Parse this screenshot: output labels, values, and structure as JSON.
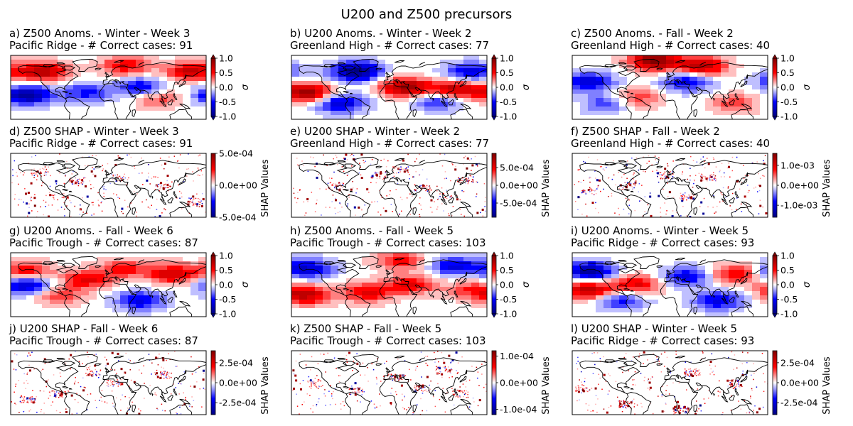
{
  "figure": {
    "title": "U200 and Z500 precursors"
  },
  "colors": {
    "negative_max": "#00007f",
    "negative": "#0000ff",
    "neutral": "#ffffff",
    "positive": "#ff0000",
    "positive_max": "#7f0000",
    "coast": "#000000"
  },
  "chart_data": [
    {
      "type": "heatmap",
      "panel": "a",
      "kind": "anom",
      "title_line1": "a) Z500 Anoms. - Winter - Week 3",
      "title_line2": "Pacific Ridge - # Correct cases: 91",
      "colorbar_label": "σ",
      "colorbar_ticks": [
        "1.0",
        "0.5",
        "0.0",
        "-0.5",
        "-1.0"
      ],
      "vmin": -1.0,
      "vmax": 1.0,
      "field": {
        "lat_range": [
          -30,
          90
        ],
        "lon_range": [
          -180,
          180
        ],
        "pattern": [
          {
            "lon": -120,
            "lat": 60,
            "value": 0.8
          },
          {
            "lon": 150,
            "lat": 60,
            "value": 0.7
          },
          {
            "lon": -150,
            "lat": 15,
            "value": -0.9
          },
          {
            "lon": 60,
            "lat": 30,
            "value": -0.6
          },
          {
            "lon": 90,
            "lat": 10,
            "value": 0.4
          },
          {
            "lon": -40,
            "lat": 20,
            "value": -0.5
          },
          {
            "lon": 30,
            "lat": 70,
            "value": 0.6
          }
        ]
      }
    },
    {
      "type": "heatmap",
      "panel": "b",
      "kind": "anom",
      "title_line1": "b) U200 Anoms. - Winter - Week 2",
      "title_line2": "Greenland High - # Correct cases: 77",
      "colorbar_label": "σ",
      "colorbar_ticks": [
        "1.0",
        "0.5",
        "0.0",
        "-0.5",
        "-1.0"
      ],
      "vmin": -1.0,
      "vmax": 1.0,
      "field": {
        "lat_range": [
          -30,
          90
        ],
        "lon_range": [
          -180,
          180
        ],
        "pattern": [
          {
            "lon": -60,
            "lat": 60,
            "value": -1.0
          },
          {
            "lon": -150,
            "lat": 20,
            "value": 0.9
          },
          {
            "lon": 30,
            "lat": 30,
            "value": 0.9
          },
          {
            "lon": 120,
            "lat": 25,
            "value": 0.8
          },
          {
            "lon": 90,
            "lat": 5,
            "value": -0.5
          },
          {
            "lon": -90,
            "lat": 0,
            "value": -0.7
          },
          {
            "lon": 150,
            "lat": 60,
            "value": -0.6
          }
        ]
      }
    },
    {
      "type": "heatmap",
      "panel": "c",
      "kind": "anom",
      "title_line1": "c) Z500 Anoms. - Fall - Week 2",
      "title_line2": "Greenland High - # Correct cases: 40",
      "colorbar_label": "σ",
      "colorbar_ticks": [
        "1.0",
        "0.5",
        "0.0",
        "-0.5",
        "-1.0"
      ],
      "vmin": -1.0,
      "vmax": 1.0,
      "field": {
        "lat_range": [
          -30,
          90
        ],
        "lon_range": [
          -180,
          180
        ],
        "pattern": [
          {
            "lon": -30,
            "lat": 80,
            "value": 1.0
          },
          {
            "lon": 60,
            "lat": 70,
            "value": 0.8
          },
          {
            "lon": -150,
            "lat": 40,
            "value": -0.7
          },
          {
            "lon": 30,
            "lat": 40,
            "value": -0.6
          },
          {
            "lon": -60,
            "lat": 10,
            "value": 0.4
          },
          {
            "lon": 120,
            "lat": 0,
            "value": 0.4
          },
          {
            "lon": -120,
            "lat": 0,
            "value": -0.4
          }
        ]
      }
    },
    {
      "type": "heatmap",
      "panel": "d",
      "kind": "shap",
      "title_line1": "d) Z500 SHAP - Winter - Week 3",
      "title_line2": "Pacific Ridge - # Correct cases: 91",
      "colorbar_label": "SHAP Values",
      "colorbar_ticks": [
        "5.0e-04",
        "0.0e+00",
        "-5.0e-04"
      ],
      "vmin": -0.0005,
      "vmax": 0.0005,
      "field": {
        "lat_range": [
          -30,
          90
        ],
        "lon_range": [
          -180,
          180
        ],
        "hotspots": [
          {
            "lon": -130,
            "lat": 55
          },
          {
            "lon": -60,
            "lat": 40
          },
          {
            "lon": 20,
            "lat": 45
          },
          {
            "lon": 100,
            "lat": 30
          },
          {
            "lon": -90,
            "lat": 10
          },
          {
            "lon": 160,
            "lat": 0
          }
        ]
      }
    },
    {
      "type": "heatmap",
      "panel": "e",
      "kind": "shap",
      "title_line1": "e) U200 SHAP - Winter - Week 2",
      "title_line2": "Greenland High - # Correct cases: 77",
      "colorbar_label": "SHAP Values",
      "colorbar_ticks": [
        "5.0e-04",
        "0.0e+00",
        "-5.0e-04"
      ],
      "vmin": -0.0009,
      "vmax": 0.0009,
      "field": {
        "lat_range": [
          -30,
          90
        ],
        "lon_range": [
          -180,
          180
        ],
        "hotspots": [
          {
            "lon": 20,
            "lat": 60
          },
          {
            "lon": 60,
            "lat": 25
          },
          {
            "lon": -20,
            "lat": 50
          },
          {
            "lon": 100,
            "lat": 10
          },
          {
            "lon": -100,
            "lat": 30
          },
          {
            "lon": 140,
            "lat": 40
          }
        ]
      }
    },
    {
      "type": "heatmap",
      "panel": "f",
      "kind": "shap",
      "title_line1": "f) Z500 SHAP - Fall - Week 2",
      "title_line2": "Greenland High - # Correct cases: 40",
      "colorbar_label": "SHAP Values",
      "colorbar_ticks": [
        "1.0e-03",
        "0.0e+00",
        "-1.0e-03"
      ],
      "vmin": -0.0016,
      "vmax": 0.0016,
      "field": {
        "lat_range": [
          -30,
          90
        ],
        "lon_range": [
          -180,
          180
        ],
        "hotspots": [
          {
            "lon": -10,
            "lat": 50
          },
          {
            "lon": 30,
            "lat": 10
          },
          {
            "lon": -80,
            "lat": 30
          },
          {
            "lon": 70,
            "lat": 45
          },
          {
            "lon": -150,
            "lat": 20
          }
        ]
      }
    },
    {
      "type": "heatmap",
      "panel": "g",
      "kind": "anom",
      "title_line1": "g) U200 Anoms. - Fall - Week 6",
      "title_line2": "Pacific Trough - # Correct cases: 87",
      "colorbar_label": "σ",
      "colorbar_ticks": [
        "1.0",
        "0.5",
        "0.0",
        "-0.5",
        "-1.0"
      ],
      "vmin": -1.0,
      "vmax": 1.0,
      "field": {
        "lat_range": [
          -30,
          90
        ],
        "lon_range": [
          -180,
          180
        ],
        "pattern": [
          {
            "lon": -150,
            "lat": 30,
            "value": -0.8
          },
          {
            "lon": -150,
            "lat": 55,
            "value": 0.6
          },
          {
            "lon": 120,
            "lat": 50,
            "value": 0.7
          },
          {
            "lon": 60,
            "lat": 0,
            "value": -0.6
          },
          {
            "lon": -40,
            "lat": 40,
            "value": 0.6
          },
          {
            "lon": 30,
            "lat": 60,
            "value": 0.5
          },
          {
            "lon": -90,
            "lat": 10,
            "value": 0.4
          }
        ]
      }
    },
    {
      "type": "heatmap",
      "panel": "h",
      "kind": "anom",
      "title_line1": "h) Z500 Anoms. - Fall - Week 5",
      "title_line2": "Pacific Trough - # Correct cases: 103",
      "colorbar_label": "σ",
      "colorbar_ticks": [
        "1.0",
        "0.5",
        "0.0",
        "-0.5",
        "-1.0"
      ],
      "vmin": -1.0,
      "vmax": 1.0,
      "field": {
        "lat_range": [
          -30,
          90
        ],
        "lon_range": [
          -180,
          180
        ],
        "pattern": [
          {
            "lon": -150,
            "lat": 60,
            "value": -0.7
          },
          {
            "lon": -150,
            "lat": 10,
            "value": 0.7
          },
          {
            "lon": -40,
            "lat": 15,
            "value": 0.6
          },
          {
            "lon": 40,
            "lat": 30,
            "value": 0.6
          },
          {
            "lon": 120,
            "lat": 65,
            "value": -0.6
          },
          {
            "lon": 20,
            "lat": 75,
            "value": 0.5
          },
          {
            "lon": 150,
            "lat": 20,
            "value": 0.4
          }
        ]
      }
    },
    {
      "type": "heatmap",
      "panel": "i",
      "kind": "anom",
      "title_line1": "i) U200 Anoms. - Winter - Week 5",
      "title_line2": "Pacific Ridge - # Correct cases: 93",
      "colorbar_label": "σ",
      "colorbar_ticks": [
        "1.0",
        "0.5",
        "0.0",
        "-0.5",
        "-1.0"
      ],
      "vmin": -1.0,
      "vmax": 1.0,
      "field": {
        "lat_range": [
          -30,
          90
        ],
        "lon_range": [
          -180,
          180
        ],
        "pattern": [
          {
            "lon": -150,
            "lat": 55,
            "value": -0.9
          },
          {
            "lon": -150,
            "lat": 20,
            "value": 0.8
          },
          {
            "lon": 120,
            "lat": 50,
            "value": 0.6
          },
          {
            "lon": 30,
            "lat": 45,
            "value": -0.6
          },
          {
            "lon": -60,
            "lat": 30,
            "value": 0.6
          },
          {
            "lon": 90,
            "lat": 0,
            "value": -0.6
          },
          {
            "lon": -90,
            "lat": 0,
            "value": -0.5
          }
        ]
      }
    },
    {
      "type": "heatmap",
      "panel": "j",
      "kind": "shap",
      "title_line1": "j) U200 SHAP - Fall - Week 6",
      "title_line2": "Pacific Trough - # Correct cases: 87",
      "colorbar_label": "SHAP Values",
      "colorbar_ticks": [
        "2.5e-04",
        "0.0e+00",
        "-2.5e-04"
      ],
      "vmin": -0.0004,
      "vmax": 0.0004,
      "field": {
        "lat_range": [
          -30,
          90
        ],
        "lon_range": [
          -180,
          180
        ],
        "hotspots": [
          {
            "lon": -150,
            "lat": 0
          },
          {
            "lon": -90,
            "lat": 10
          },
          {
            "lon": 10,
            "lat": 30
          },
          {
            "lon": 100,
            "lat": 45
          },
          {
            "lon": -30,
            "lat": 50
          }
        ]
      }
    },
    {
      "type": "heatmap",
      "panel": "k",
      "kind": "shap",
      "title_line1": "k) Z500 SHAP - Fall - Week 5",
      "title_line2": "Pacific Trough - # Correct cases: 103",
      "colorbar_label": "SHAP Values",
      "colorbar_ticks": [
        "1.0e-04",
        "0.0e+00",
        "-1.0e-04"
      ],
      "vmin": -0.00012,
      "vmax": 0.00012,
      "field": {
        "lat_range": [
          -30,
          90
        ],
        "lon_range": [
          -180,
          180
        ],
        "hotspots": [
          {
            "lon": -140,
            "lat": 30
          },
          {
            "lon": -60,
            "lat": 15
          },
          {
            "lon": 10,
            "lat": 40
          },
          {
            "lon": 60,
            "lat": 20
          },
          {
            "lon": 130,
            "lat": 10
          },
          {
            "lon": 100,
            "lat": 55
          }
        ]
      }
    },
    {
      "type": "heatmap",
      "panel": "l",
      "kind": "shap",
      "title_line1": "l) U200 SHAP - Winter - Week 5",
      "title_line2": "Pacific Ridge - # Correct cases: 93",
      "colorbar_label": "SHAP Values",
      "colorbar_ticks": [
        "2.5e-04",
        "0.0e+00",
        "-2.5e-04"
      ],
      "vmin": -0.0004,
      "vmax": 0.0004,
      "field": {
        "lat_range": [
          -30,
          90
        ],
        "lon_range": [
          -180,
          180
        ],
        "hotspots": [
          {
            "lon": -160,
            "lat": 20
          },
          {
            "lon": -80,
            "lat": -10
          },
          {
            "lon": 20,
            "lat": -20
          },
          {
            "lon": 40,
            "lat": 50
          },
          {
            "lon": 120,
            "lat": 30
          }
        ]
      }
    }
  ]
}
